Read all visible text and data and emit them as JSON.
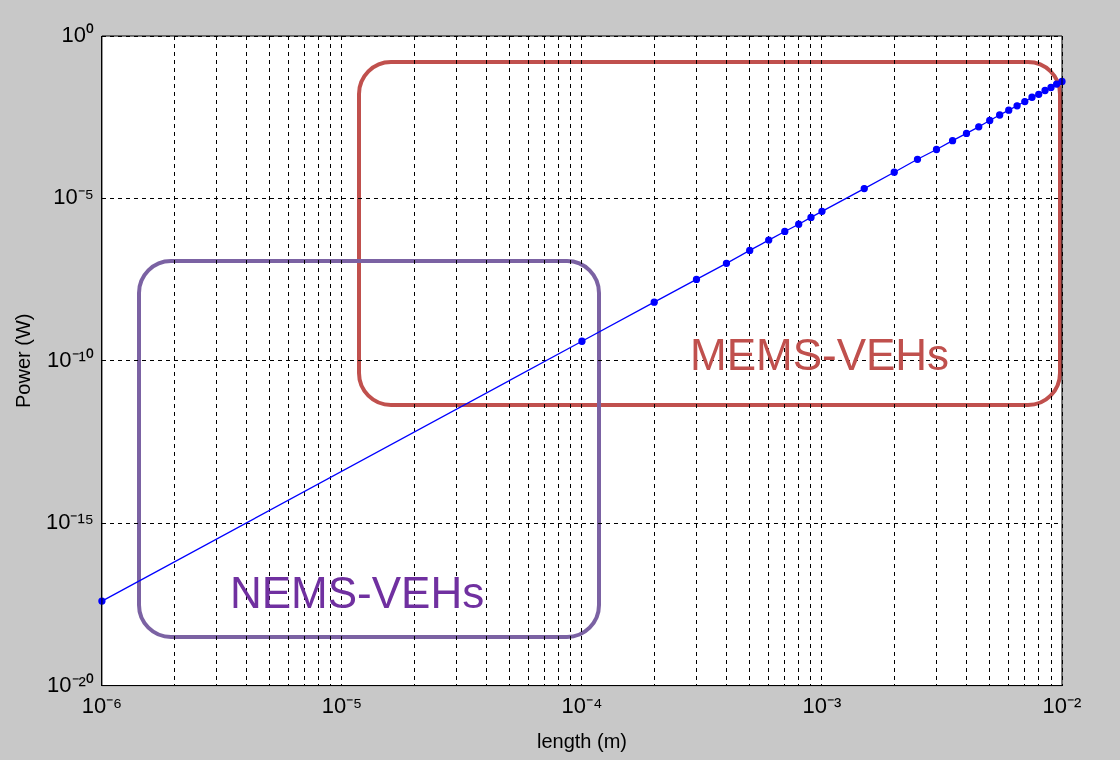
{
  "chart_data": {
    "type": "line",
    "xlabel": "length (m)",
    "ylabel": "Power (W)",
    "log": "xy",
    "grid": true,
    "legend": false,
    "marker": "circle",
    "line_style": "solid",
    "xlim": [
      1e-06,
      0.01
    ],
    "ylim": [
      1e-20,
      1
    ],
    "xticks": [
      {
        "value": 1e-06,
        "label": "10⁻⁶"
      },
      {
        "value": 2e-06,
        "label": null
      },
      {
        "value": 3e-06,
        "label": null
      },
      {
        "value": 4e-06,
        "label": null
      },
      {
        "value": 5e-06,
        "label": null
      },
      {
        "value": 6e-06,
        "label": null
      },
      {
        "value": 7e-06,
        "label": null
      },
      {
        "value": 8e-06,
        "label": null
      },
      {
        "value": 9e-06,
        "label": null
      },
      {
        "value": 1e-05,
        "label": "10⁻⁵"
      },
      {
        "value": 2e-05,
        "label": null
      },
      {
        "value": 3e-05,
        "label": null
      },
      {
        "value": 4e-05,
        "label": null
      },
      {
        "value": 5e-05,
        "label": null
      },
      {
        "value": 6e-05,
        "label": null
      },
      {
        "value": 7e-05,
        "label": null
      },
      {
        "value": 8e-05,
        "label": null
      },
      {
        "value": 9e-05,
        "label": null
      },
      {
        "value": 0.0001,
        "label": "10⁻⁴"
      },
      {
        "value": 0.0002,
        "label": null
      },
      {
        "value": 0.0003,
        "label": null
      },
      {
        "value": 0.0004,
        "label": null
      },
      {
        "value": 0.0005,
        "label": null
      },
      {
        "value": 0.0006,
        "label": null
      },
      {
        "value": 0.0007,
        "label": null
      },
      {
        "value": 0.0008,
        "label": null
      },
      {
        "value": 0.0009,
        "label": null
      },
      {
        "value": 0.001,
        "label": "10⁻³"
      },
      {
        "value": 0.002,
        "label": null
      },
      {
        "value": 0.003,
        "label": null
      },
      {
        "value": 0.004,
        "label": null
      },
      {
        "value": 0.005,
        "label": null
      },
      {
        "value": 0.006,
        "label": null
      },
      {
        "value": 0.007,
        "label": null
      },
      {
        "value": 0.008,
        "label": null
      },
      {
        "value": 0.009,
        "label": null
      },
      {
        "value": 0.01,
        "label": "10⁻²"
      }
    ],
    "yticks": [
      {
        "value": 1e-20,
        "label": "10⁻²⁰"
      },
      {
        "value": 1e-15,
        "label": "10⁻¹⁵"
      },
      {
        "value": 1e-10,
        "label": "10⁻¹⁰"
      },
      {
        "value": 1e-05,
        "label": "10⁻⁵"
      },
      {
        "value": 1,
        "label": "10⁰"
      }
    ],
    "series": [
      {
        "color": "#0000ff",
        "x": [
          1e-06,
          0.0001,
          0.0002,
          0.0003,
          0.0004,
          0.0005,
          0.0006,
          0.0007,
          0.0008,
          0.0009,
          0.001,
          0.0015,
          0.002,
          0.0025,
          0.003,
          0.0035,
          0.004,
          0.0045,
          0.005,
          0.0055,
          0.006,
          0.0065,
          0.007,
          0.0075,
          0.008,
          0.0085,
          0.009,
          0.0095,
          0.01
        ],
        "values": [
          4e-18,
          4e-10,
          6.4e-09,
          3.2e-08,
          1e-07,
          2.5e-07,
          5.2e-07,
          9.6e-07,
          1.6e-06,
          2.6e-06,
          4e-06,
          2e-05,
          6.4e-05,
          0.00016,
          0.00032,
          0.0006,
          0.001,
          0.0016,
          0.0025,
          0.0037,
          0.0052,
          0.0071,
          0.0096,
          0.013,
          0.016,
          0.021,
          0.026,
          0.033,
          0.04
        ]
      }
    ],
    "annotations": [
      "MEMS-VEHs",
      "NEMS-VEHs"
    ]
  }
}
